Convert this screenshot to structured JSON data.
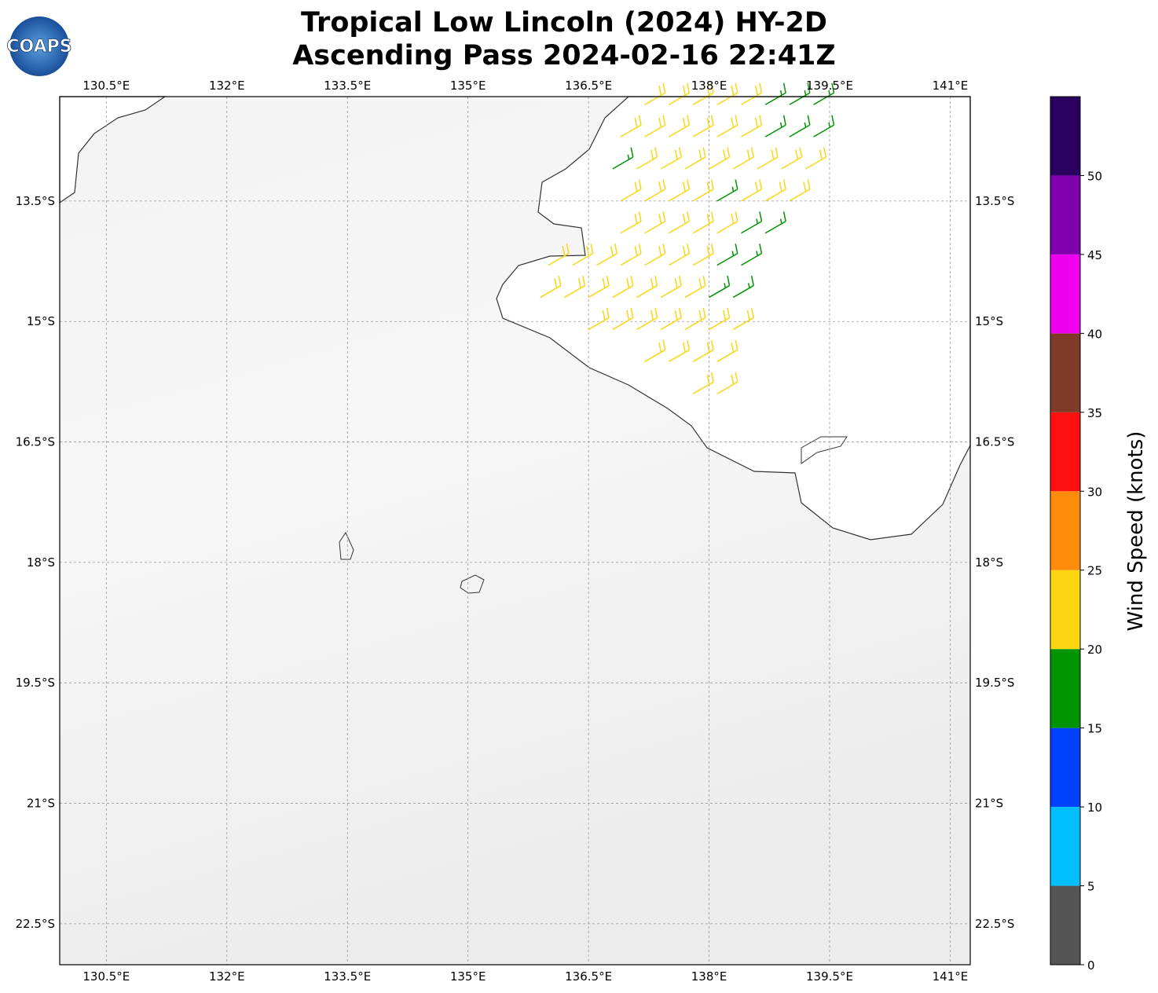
{
  "logo": "COAPS",
  "title": [
    "Tropical Low Lincoln (2024) HY-2D",
    "Ascending Pass 2024-02-16 22:41Z"
  ],
  "map": {
    "xlim": [
      129.92,
      141.25
    ],
    "ylim": [
      -23.01,
      -12.2
    ],
    "xticks": [
      {
        "value": 130.5,
        "label": "130.5°E"
      },
      {
        "value": 132,
        "label": "132°E"
      },
      {
        "value": 133.5,
        "label": "133.5°E"
      },
      {
        "value": 135,
        "label": "135°E"
      },
      {
        "value": 136.5,
        "label": "136.5°E"
      },
      {
        "value": 138,
        "label": "138°E"
      },
      {
        "value": 139.5,
        "label": "139.5°E"
      },
      {
        "value": 141,
        "label": "141°E"
      }
    ],
    "yticks": [
      {
        "value": -13.5,
        "label": "13.5°S"
      },
      {
        "value": -15,
        "label": "15°S"
      },
      {
        "value": -16.5,
        "label": "16.5°S"
      },
      {
        "value": -18,
        "label": "18°S"
      },
      {
        "value": -19.5,
        "label": "19.5°S"
      },
      {
        "value": -21,
        "label": "21°S"
      },
      {
        "value": -22.5,
        "label": "22.5°S"
      }
    ],
    "grid": true,
    "barbs": {
      "direction_deg": 60,
      "lon": [
        137.2,
        137.5,
        137.8,
        138.1,
        138.4,
        138.7,
        139.0,
        139.3,
        136.9,
        137.2,
        137.5,
        137.8,
        138.1,
        138.4,
        138.7,
        139.0,
        139.3,
        136.8,
        137.1,
        137.4,
        137.7,
        138.0,
        138.3,
        138.6,
        138.9,
        139.2,
        136.9,
        137.2,
        137.5,
        137.8,
        138.1,
        138.4,
        138.7,
        139.0,
        136.9,
        137.2,
        137.5,
        137.8,
        138.1,
        138.4,
        138.7,
        136.0,
        136.3,
        136.6,
        136.9,
        137.2,
        137.5,
        137.8,
        138.1,
        138.4,
        135.9,
        136.2,
        136.5,
        136.8,
        137.1,
        137.4,
        137.7,
        138.0,
        138.3,
        136.5,
        136.8,
        137.1,
        137.4,
        137.7,
        138.0,
        138.3,
        137.2,
        137.5,
        137.8,
        138.1,
        137.8,
        138.1
      ],
      "lat": [
        -12.3,
        -12.3,
        -12.3,
        -12.3,
        -12.3,
        -12.3,
        -12.3,
        -12.3,
        -12.7,
        -12.7,
        -12.7,
        -12.7,
        -12.7,
        -12.7,
        -12.7,
        -12.7,
        -12.7,
        -13.1,
        -13.1,
        -13.1,
        -13.1,
        -13.1,
        -13.1,
        -13.1,
        -13.1,
        -13.1,
        -13.5,
        -13.5,
        -13.5,
        -13.5,
        -13.5,
        -13.5,
        -13.5,
        -13.5,
        -13.9,
        -13.9,
        -13.9,
        -13.9,
        -13.9,
        -13.9,
        -13.9,
        -14.3,
        -14.3,
        -14.3,
        -14.3,
        -14.3,
        -14.3,
        -14.3,
        -14.3,
        -14.3,
        -14.7,
        -14.7,
        -14.7,
        -14.7,
        -14.7,
        -14.7,
        -14.7,
        -14.7,
        -14.7,
        -15.1,
        -15.1,
        -15.1,
        -15.1,
        -15.1,
        -15.1,
        -15.1,
        -15.5,
        -15.5,
        -15.5,
        -15.5,
        -15.9,
        -15.9
      ],
      "speed": [
        22,
        22,
        22,
        22,
        22,
        17,
        17,
        17,
        22,
        22,
        22,
        22,
        22,
        22,
        17,
        17,
        17,
        17,
        22,
        22,
        22,
        22,
        22,
        22,
        22,
        22,
        22,
        22,
        22,
        22,
        17,
        22,
        22,
        22,
        22,
        22,
        22,
        22,
        22,
        17,
        17,
        22,
        22,
        22,
        22,
        22,
        22,
        22,
        17,
        17,
        22,
        22,
        22,
        22,
        22,
        22,
        22,
        17,
        17,
        22,
        22,
        22,
        22,
        22,
        22,
        22,
        22,
        22,
        22,
        22,
        22,
        22
      ]
    }
  },
  "colorbar": {
    "label": "Wind Speed (knots)",
    "lim": [
      0,
      55
    ],
    "bounds": [
      0,
      5,
      10,
      15,
      20,
      25,
      30,
      35,
      40,
      45,
      50,
      55
    ],
    "colors": [
      "#555555",
      "#00bfff",
      "#0040ff",
      "#009400",
      "#fcd612",
      "#ff8c0a",
      "#ff1010",
      "#7f3a28",
      "#ef00ef",
      "#8000b0",
      "#2a0060"
    ],
    "ticks": [
      0,
      5,
      10,
      15,
      20,
      25,
      30,
      35,
      40,
      45,
      50
    ]
  }
}
